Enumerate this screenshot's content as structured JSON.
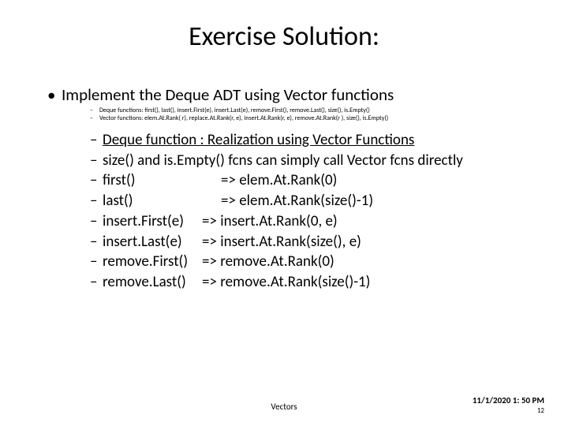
{
  "title": "Exercise Solution:",
  "main_bullet": "Implement the Deque ADT using Vector functions",
  "sub_small": [
    "Deque functions: first(), last(), insert.First(e), insert.Last(e), remove.First(), remove.Last(), size(), is.Empty()",
    "Vector functions: elem.At.Rank( r), replace.At.Rank(r, e), insert.At.Rank(r, e), remove.At.Rank(r ), size(), is.Empty()"
  ],
  "header_line": "Deque function :   Realization using Vector Functions",
  "lines": [
    "size() and is.Empty() fcns can simply call Vector fcns directly",
    {
      "lhs": "first()",
      "rhs": "=> elem.At.Rank(0)",
      "cls": "map"
    },
    {
      "lhs": "last()",
      "rhs": "=> elem.At.Rank(size()-1)",
      "cls": "map"
    },
    {
      "lhs": "insert.First(e)",
      "rhs": "=> insert.At.Rank(0, e)",
      "cls": "map-s"
    },
    {
      "lhs": "insert.Last(e)",
      "rhs": "=> insert.At.Rank(size(), e)",
      "cls": "map-s"
    },
    {
      "lhs": "remove.First()",
      "rhs": "=> remove.At.Rank(0)",
      "cls": "map-s"
    },
    {
      "lhs": "remove.Last()",
      "rhs": "=> remove.At.Rank(size()-1)",
      "cls": "map-s"
    }
  ],
  "footer_center": "Vectors",
  "footer_date": "11/1/2020 1: 50 PM",
  "footer_page": "12"
}
